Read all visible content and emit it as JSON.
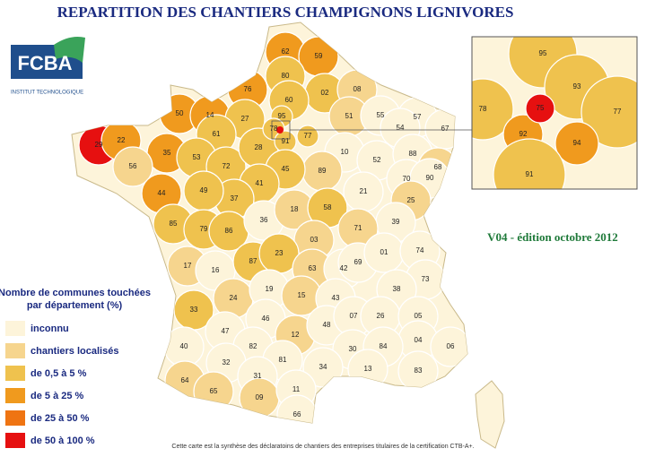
{
  "title": "REPARTITION DES CHANTIERS  CHAMPIGNONS LIGNIVORES",
  "logo": {
    "name": "FCBA",
    "subtitle": "INSTITUT TECHNOLOGIQUE"
  },
  "edition": "V04 -  édition octobre 2012",
  "legend": {
    "title": [
      "Nombre de communes touchées",
      "par département  (%)"
    ],
    "items": [
      {
        "label": "inconnu",
        "color": "#fdf4da"
      },
      {
        "label": "chantiers localisés",
        "color": "#f6d58e"
      },
      {
        "label": "de 0,5 à 5 %",
        "color": "#efc24e"
      },
      {
        "label": "de 5 à 25 %",
        "color": "#f09a1e"
      },
      {
        "label": "de 25 à 50 %",
        "color": "#ef7412"
      },
      {
        "label": "de 50 à 100 %",
        "color": "#e61010"
      }
    ]
  },
  "departments": [
    {
      "code": "62",
      "class": 3
    },
    {
      "code": "59",
      "class": 3
    },
    {
      "code": "80",
      "class": 2
    },
    {
      "code": "02",
      "class": 2
    },
    {
      "code": "60",
      "class": 2
    },
    {
      "code": "08",
      "class": 1
    },
    {
      "code": "76",
      "class": 3
    },
    {
      "code": "50",
      "class": 3
    },
    {
      "code": "14",
      "class": 3
    },
    {
      "code": "29",
      "class": 5
    },
    {
      "code": "22",
      "class": 3
    },
    {
      "code": "35",
      "class": 3
    },
    {
      "code": "56",
      "class": 1
    },
    {
      "code": "44",
      "class": 3
    },
    {
      "code": "27",
      "class": 2
    },
    {
      "code": "61",
      "class": 2
    },
    {
      "code": "53",
      "class": 2
    },
    {
      "code": "72",
      "class": 2
    },
    {
      "code": "28",
      "class": 2
    },
    {
      "code": "95",
      "class": 2
    },
    {
      "code": "78",
      "class": 2
    },
    {
      "code": "91",
      "class": 2
    },
    {
      "code": "77",
      "class": 2
    },
    {
      "code": "51",
      "class": 1
    },
    {
      "code": "55",
      "class": 0
    },
    {
      "code": "57",
      "class": 0
    },
    {
      "code": "54",
      "class": 0
    },
    {
      "code": "67",
      "class": 0
    },
    {
      "code": "10",
      "class": 0
    },
    {
      "code": "52",
      "class": 0
    },
    {
      "code": "88",
      "class": 0
    },
    {
      "code": "68",
      "class": 1
    },
    {
      "code": "89",
      "class": 1
    },
    {
      "code": "45",
      "class": 2
    },
    {
      "code": "41",
      "class": 2
    },
    {
      "code": "37",
      "class": 2
    },
    {
      "code": "49",
      "class": 2
    },
    {
      "code": "85",
      "class": 2
    },
    {
      "code": "79",
      "class": 2
    },
    {
      "code": "86",
      "class": 2
    },
    {
      "code": "36",
      "class": 0
    },
    {
      "code": "18",
      "class": 1
    },
    {
      "code": "58",
      "class": 2
    },
    {
      "code": "21",
      "class": 0
    },
    {
      "code": "70",
      "class": 0
    },
    {
      "code": "90",
      "class": 0
    },
    {
      "code": "25",
      "class": 1
    },
    {
      "code": "39",
      "class": 0
    },
    {
      "code": "71",
      "class": 1
    },
    {
      "code": "03",
      "class": 1
    },
    {
      "code": "17",
      "class": 1
    },
    {
      "code": "16",
      "class": 0
    },
    {
      "code": "87",
      "class": 2
    },
    {
      "code": "23",
      "class": 2
    },
    {
      "code": "63",
      "class": 1
    },
    {
      "code": "42",
      "class": 0
    },
    {
      "code": "69",
      "class": 0
    },
    {
      "code": "01",
      "class": 0
    },
    {
      "code": "74",
      "class": 0
    },
    {
      "code": "73",
      "class": 0
    },
    {
      "code": "38",
      "class": 0
    },
    {
      "code": "24",
      "class": 1
    },
    {
      "code": "19",
      "class": 0
    },
    {
      "code": "15",
      "class": 1
    },
    {
      "code": "43",
      "class": 0
    },
    {
      "code": "33",
      "class": 2
    },
    {
      "code": "46",
      "class": 0
    },
    {
      "code": "12",
      "class": 1
    },
    {
      "code": "48",
      "class": 0
    },
    {
      "code": "07",
      "class": 0
    },
    {
      "code": "26",
      "class": 0
    },
    {
      "code": "05",
      "class": 0
    },
    {
      "code": "04",
      "class": 0
    },
    {
      "code": "06",
      "class": 0
    },
    {
      "code": "40",
      "class": 0
    },
    {
      "code": "47",
      "class": 0
    },
    {
      "code": "82",
      "class": 0
    },
    {
      "code": "81",
      "class": 0
    },
    {
      "code": "30",
      "class": 0
    },
    {
      "code": "84",
      "class": 0
    },
    {
      "code": "13",
      "class": 0
    },
    {
      "code": "83",
      "class": 0
    },
    {
      "code": "32",
      "class": 0
    },
    {
      "code": "31",
      "class": 0
    },
    {
      "code": "34",
      "class": 0
    },
    {
      "code": "64",
      "class": 1
    },
    {
      "code": "65",
      "class": 1
    },
    {
      "code": "09",
      "class": 1
    },
    {
      "code": "11",
      "class": 0
    },
    {
      "code": "66",
      "class": 0
    }
  ],
  "inset": [
    {
      "code": "95",
      "class": 2
    },
    {
      "code": "93",
      "class": 2
    },
    {
      "code": "77",
      "class": 2
    },
    {
      "code": "78",
      "class": 2
    },
    {
      "code": "92",
      "class": 3
    },
    {
      "code": "94",
      "class": 3
    },
    {
      "code": "91",
      "class": 2
    },
    {
      "code": "75",
      "class": 5
    }
  ],
  "footnote": "Cette carte est la synthèse des déclaratoins de chantiers des entreprises titulaires de la certification CTB-A+."
}
